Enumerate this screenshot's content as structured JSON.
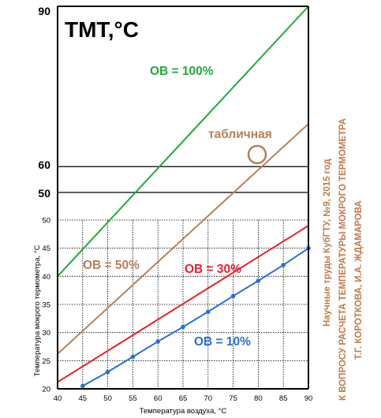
{
  "chart_data": {
    "type": "line",
    "title": "ТМТ,°С",
    "xlabel": "Температура воздуха, °С",
    "ylabel": "Температура мокрого термометра, °С",
    "xlim": [
      40,
      90
    ],
    "ylim_lower": [
      20,
      50
    ],
    "ylim_upper": [
      50,
      90
    ],
    "x_ticks": [
      "40",
      "45",
      "50",
      "55",
      "60",
      "65",
      "70",
      "75",
      "80",
      "85",
      "90"
    ],
    "y_ticks_lower": [
      "20",
      "25",
      "30",
      "35",
      "40",
      "45",
      "50"
    ],
    "y_ticks_upper": [
      "50",
      "60",
      "90"
    ],
    "grid": "lower panel only",
    "series": [
      {
        "name": "ОВ = 100%",
        "color": "#22a93a",
        "x": [
          40,
          90
        ],
        "y": [
          40,
          90
        ]
      },
      {
        "name": "табличная",
        "color": "#b5805a",
        "x": [
          40,
          90
        ],
        "y": [
          26.2,
          68
        ]
      },
      {
        "name": "ОВ = 50%",
        "color": "#b5805a",
        "x": [
          40,
          90
        ],
        "y": [
          26.2,
          68
        ]
      },
      {
        "name": "ОВ = 30%",
        "color": "#e8202c",
        "x": [
          40,
          90
        ],
        "y": [
          21.2,
          49
        ]
      },
      {
        "name": "ОВ = 10%",
        "color": "#2a6fd6",
        "markers": true,
        "x": [
          45,
          50,
          55,
          60,
          65,
          70,
          75,
          80,
          85,
          90
        ],
        "y": [
          20.5,
          23.0,
          25.7,
          28.4,
          31.0,
          33.7,
          36.5,
          39.2,
          42.0,
          45.0
        ]
      }
    ],
    "annotations": [
      {
        "text": "ОВ = 100%",
        "color": "#22a93a"
      },
      {
        "text": "табличная",
        "color": "#b5805a"
      },
      {
        "text": "ОВ = 50%",
        "color": "#b5805a"
      },
      {
        "text": "ОВ = 30%",
        "color": "#e8202c"
      },
      {
        "text": "ОВ = 10%",
        "color": "#2a6fd6"
      }
    ]
  },
  "caption": {
    "line1": "Научные труды КубГТУ, №9, 2015 год",
    "line2": "К ВОПРОСУ РАСЧЕТА ТЕМПЕРАТУРЫ МОКРОГО ТЕРМОМЕТРА",
    "line3": "Т.Г. КОРОТКОВА,  И.А. ЖДАМАРОВА"
  }
}
